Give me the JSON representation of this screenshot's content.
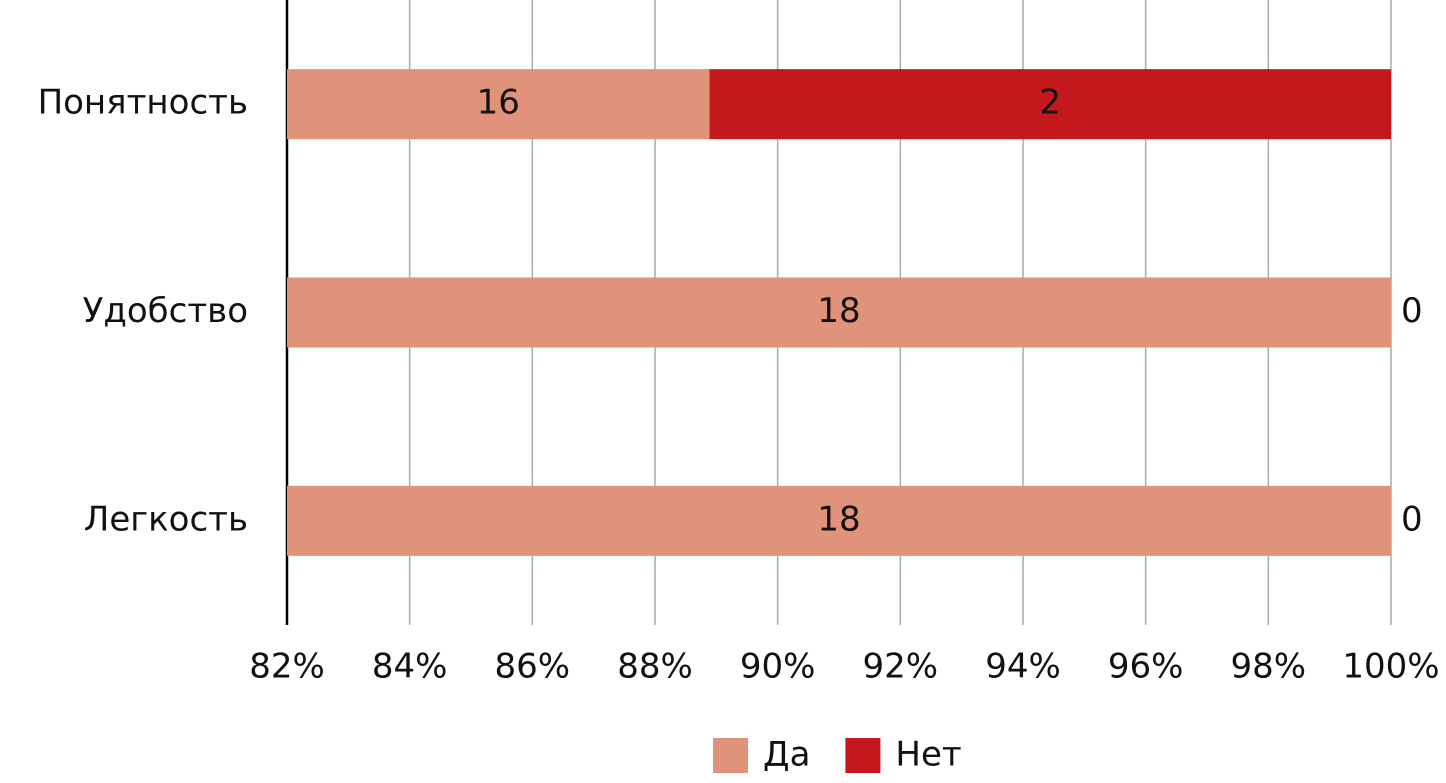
{
  "chart_data": {
    "type": "bar",
    "orientation": "horizontal",
    "stacking": "percent",
    "categories": [
      "Понятность",
      "Удобство",
      "Легкость"
    ],
    "series": [
      {
        "name": "Да",
        "color": "#e0937a",
        "values": [
          16,
          18,
          18
        ]
      },
      {
        "name": "Нет",
        "color": "#c4191c",
        "values": [
          2,
          0,
          0
        ]
      }
    ],
    "xlim": [
      82,
      100
    ],
    "xticks": [
      {
        "value": 82,
        "label": "82%"
      },
      {
        "value": 84,
        "label": "84%"
      },
      {
        "value": 86,
        "label": "86%"
      },
      {
        "value": 88,
        "label": "88%"
      },
      {
        "value": 90,
        "label": "90%"
      },
      {
        "value": 92,
        "label": "92%"
      },
      {
        "value": 94,
        "label": "94%"
      },
      {
        "value": 96,
        "label": "96%"
      },
      {
        "value": 98,
        "label": "98%"
      },
      {
        "value": 100,
        "label": "100%"
      }
    ],
    "grid": true,
    "legend": "bottom"
  }
}
